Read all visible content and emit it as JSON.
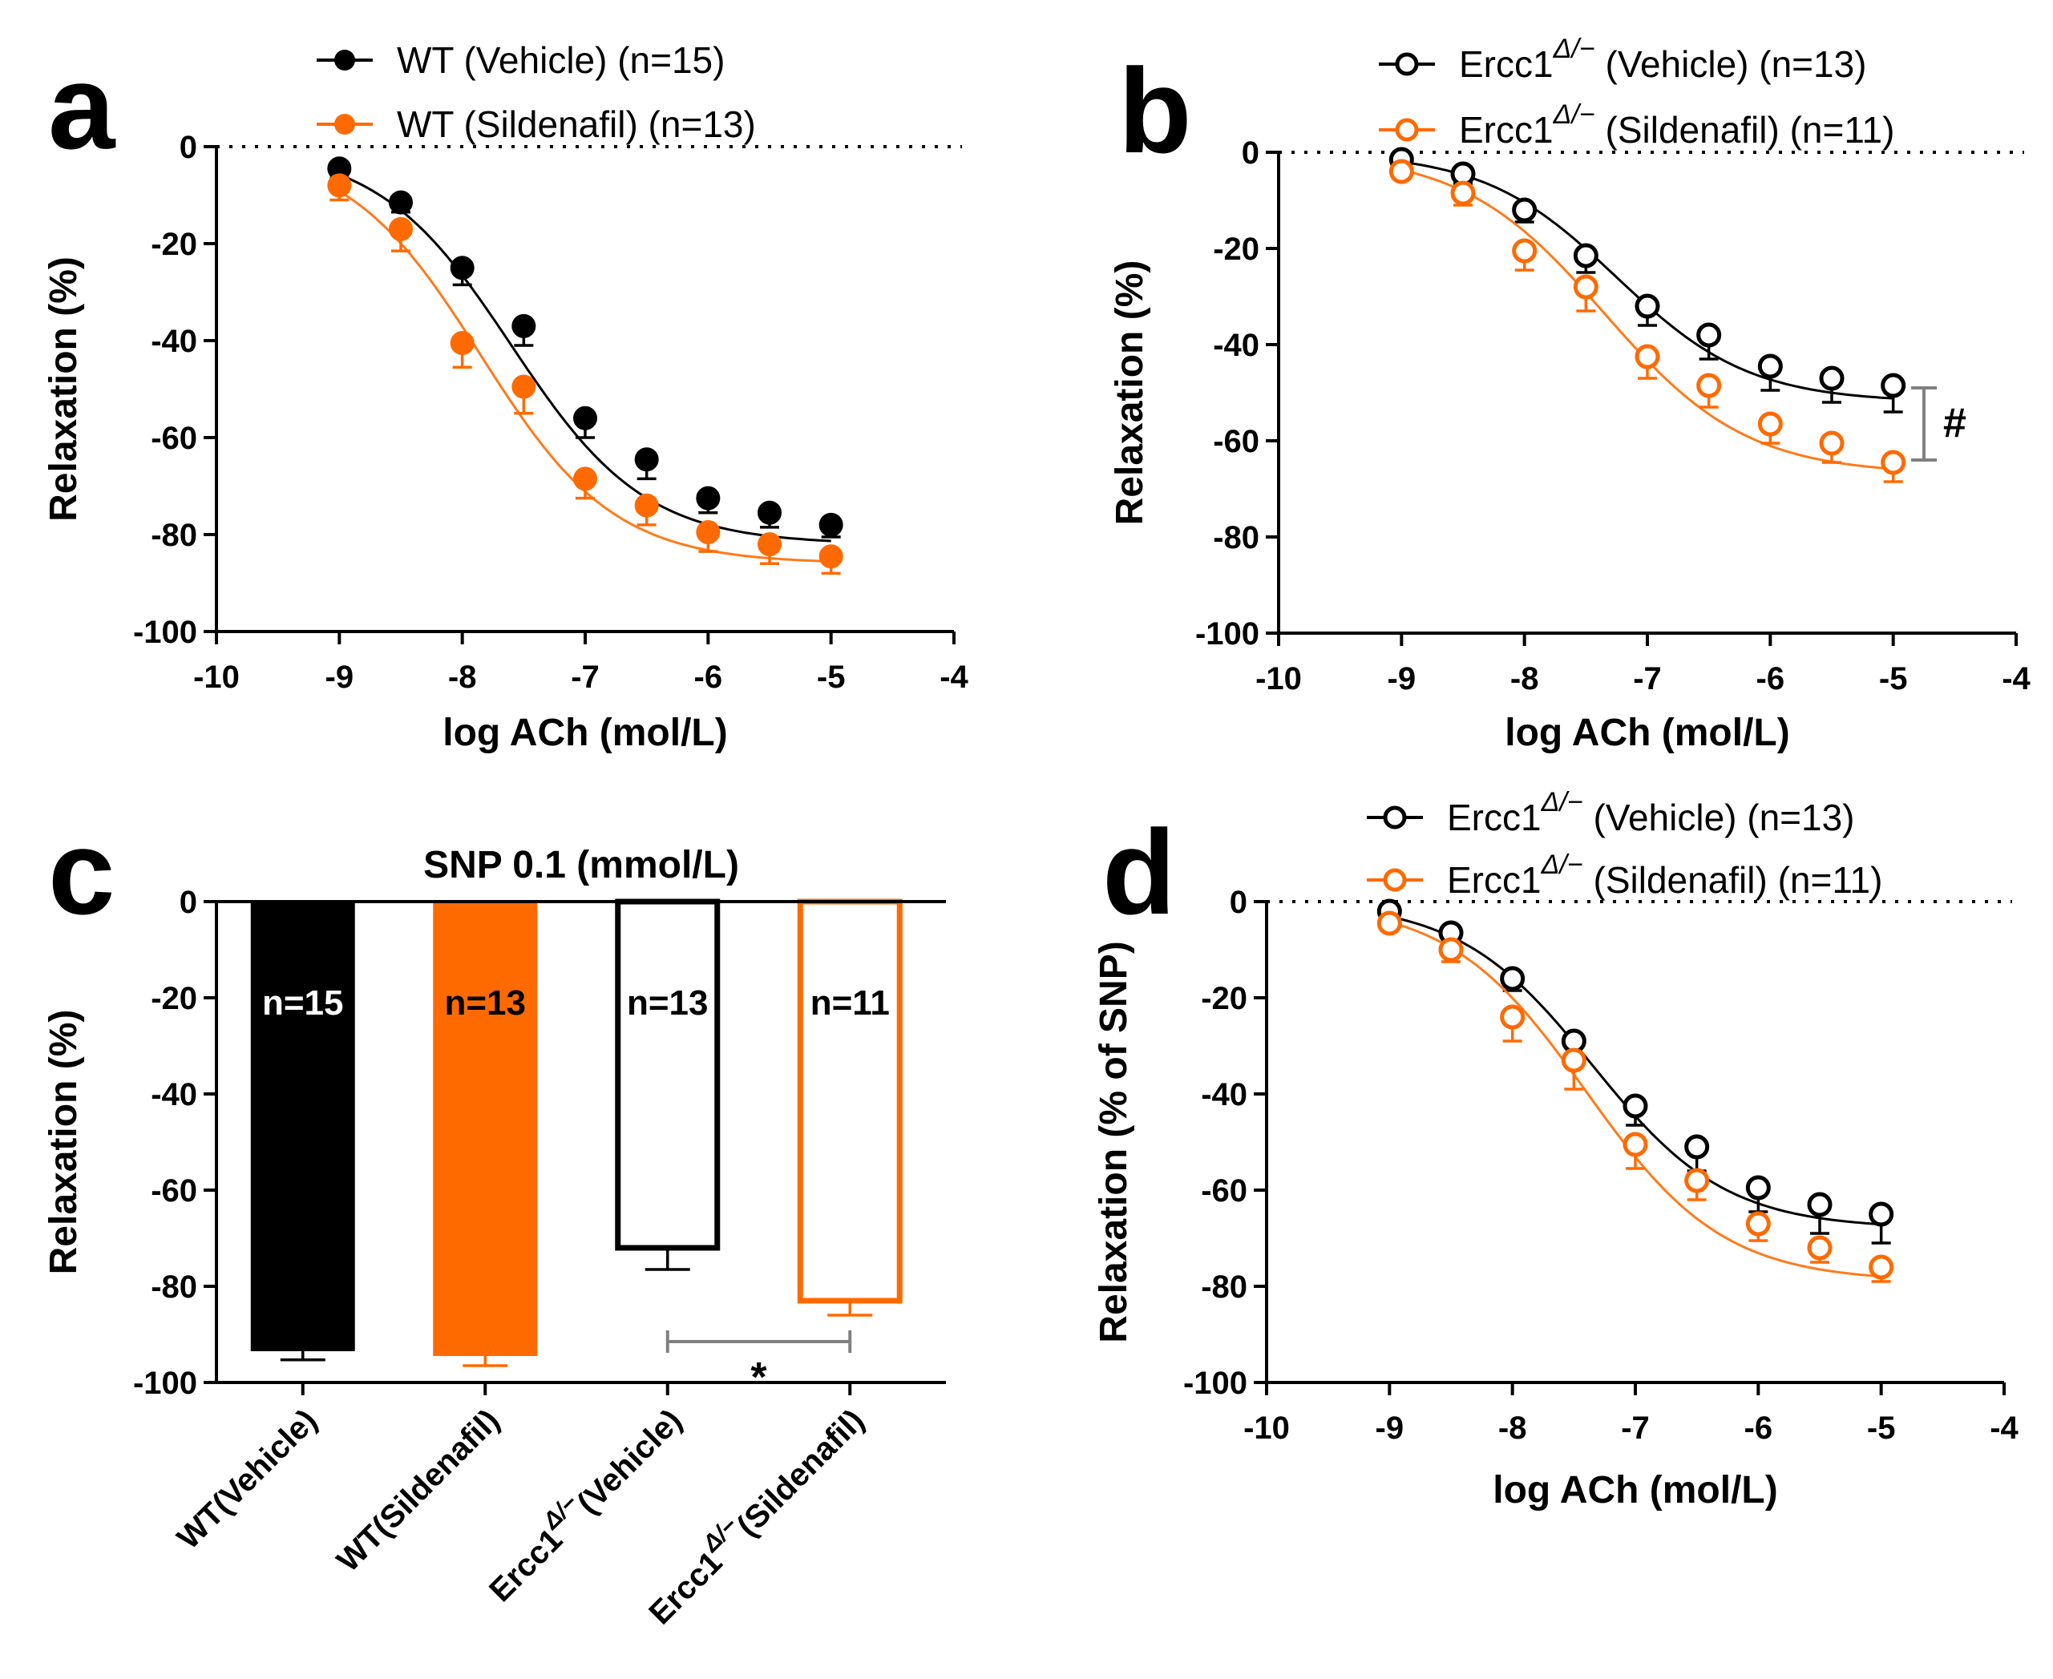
{
  "colors": {
    "black": "#000000",
    "orange": "#ff6a00",
    "orange_line": "#ff7a1a",
    "gray": "#808080"
  },
  "chart_data": [
    {
      "panel": "a",
      "type": "line",
      "title": "",
      "xlabel": "log ACh (mol/L)",
      "ylabel": "Relaxation (%)",
      "xlim": [
        -10,
        -4
      ],
      "ylim": [
        -100,
        0
      ],
      "xticks": [
        "-10",
        "-9",
        "-8",
        "-7",
        "-6",
        "-5",
        "-4"
      ],
      "yticks": [
        "0",
        "-20",
        "-40",
        "-60",
        "-80",
        "-100"
      ],
      "x": [
        -9,
        -8.5,
        -8,
        -7.5,
        -7,
        -6.5,
        -6,
        -5.5,
        -5
      ],
      "series": [
        {
          "legend": "WT (Vehicle) (n=15)",
          "color": "#000000",
          "marker": "filled",
          "values": [
            -4.5,
            -11.5,
            -25,
            -37,
            -56,
            -64.5,
            -72.5,
            -75.5,
            -78
          ],
          "errors": [
            2,
            2,
            3.5,
            4,
            4,
            4,
            3,
            3,
            2.5
          ],
          "fit": {
            "bottom": -82,
            "logEC50": -7.6,
            "hill": 0.8
          }
        },
        {
          "legend": "WT (Sildenafil) (n=13)",
          "color": "#ff6a00",
          "marker": "filled",
          "values": [
            -8,
            -17,
            -40.5,
            -49.5,
            -68.5,
            -74,
            -79.5,
            -82,
            -84.5
          ],
          "errors": [
            3,
            4.5,
            5,
            5.5,
            4,
            4,
            4,
            4,
            3.5
          ],
          "fit": {
            "bottom": -86,
            "logEC50": -7.85,
            "hill": 0.8
          }
        }
      ],
      "annotations": []
    },
    {
      "panel": "b",
      "type": "line",
      "title": "",
      "xlabel": "log ACh (mol/L)",
      "ylabel": "Relaxation (%)",
      "xlim": [
        -10,
        -4
      ],
      "ylim": [
        -100,
        0
      ],
      "xticks": [
        "-10",
        "-9",
        "-8",
        "-7",
        "-6",
        "-5",
        "-4"
      ],
      "yticks": [
        "0",
        "-20",
        "-40",
        "-60",
        "-80",
        "-100"
      ],
      "x": [
        -9,
        -8.5,
        -8,
        -7.5,
        -7,
        -6.5,
        -6,
        -5.5,
        -5
      ],
      "series": [
        {
          "legend_main": "Ercc1",
          "legend_sup": "Δ/−",
          "legend_tail": " (Vehicle) (n=13)",
          "color": "#000000",
          "marker": "open",
          "values": [
            -1.5,
            -4.5,
            -12,
            -21.5,
            -32,
            -38,
            -44.5,
            -47,
            -48.5
          ],
          "errors": [
            1.5,
            2,
            2.5,
            3.5,
            4,
            5,
            5,
            5,
            5.5
          ],
          "fit": {
            "bottom": -52,
            "logEC50": -7.25,
            "hill": 0.8
          }
        },
        {
          "legend_main": "Ercc1",
          "legend_sup": "Δ/−",
          "legend_tail": " (Sildenafil) (n=11)",
          "color": "#ff6a00",
          "marker": "open",
          "values": [
            -4,
            -8.5,
            -20.5,
            -28,
            -42.5,
            -48.5,
            -56.5,
            -60.5,
            -64.5
          ],
          "errors": [
            1.5,
            2.5,
            4,
            5,
            4.5,
            4.5,
            4,
            4,
            4
          ],
          "fit": {
            "bottom": -67,
            "logEC50": -7.35,
            "hill": 0.75
          }
        }
      ],
      "annotations": [
        {
          "text": "#",
          "type": "bracket",
          "from": -49,
          "to": -64,
          "x": -4.75
        }
      ]
    },
    {
      "panel": "c",
      "type": "bar",
      "title": "SNP 0.1 (mmol/L)",
      "xlabel": "",
      "ylabel": "Relaxation (%)",
      "ylim": [
        -100,
        0
      ],
      "yticks": [
        "0",
        "-20",
        "-40",
        "-60",
        "-80",
        "-100"
      ],
      "categories": [
        {
          "main": "WT(Vehicle)",
          "sup": "",
          "tail": ""
        },
        {
          "main": "WT(Sildenafil)",
          "sup": "",
          "tail": ""
        },
        {
          "main": "Ercc1",
          "sup": "Δ/−",
          "tail": "(Vehicle)"
        },
        {
          "main": "Ercc1",
          "sup": "Δ/−",
          "tail": "(Sildenafil)"
        }
      ],
      "values": [
        -93.5,
        -94.5,
        -72.5,
        -83.5
      ],
      "errors": [
        1.8,
        2,
        4,
        2.5
      ],
      "bar_labels": [
        "n=15",
        "n=13",
        "n=13",
        "n=11"
      ],
      "bar_colors": [
        "#000000",
        "#ff6a00",
        "#000000",
        "#ff6a00"
      ],
      "bar_fill": [
        "solid",
        "solid",
        "open",
        "open"
      ],
      "label_colors": [
        "#ffffff",
        "#000000",
        "#000000",
        "#000000"
      ],
      "annotations": [
        {
          "text": "*",
          "type": "bracket",
          "from_bar": 2,
          "to_bar": 3,
          "y": -91.5
        }
      ]
    },
    {
      "panel": "d",
      "type": "line",
      "title": "",
      "xlabel": "log ACh (mol/L)",
      "ylabel": "Relaxation (% of SNP)",
      "xlim": [
        -10,
        -4
      ],
      "ylim": [
        -100,
        0
      ],
      "xticks": [
        "-10",
        "-9",
        "-8",
        "-7",
        "-6",
        "-5",
        "-4"
      ],
      "yticks": [
        "0",
        "-20",
        "-40",
        "-60",
        "-80",
        "-100"
      ],
      "x": [
        -9,
        -8.5,
        -8,
        -7.5,
        -7,
        -6.5,
        -6,
        -5.5,
        -5
      ],
      "series": [
        {
          "legend_main": "Ercc1",
          "legend_sup": "Δ/−",
          "legend_tail": " (Vehicle) (n=13)",
          "color": "#000000",
          "marker": "open",
          "values": [
            -2,
            -6.5,
            -16,
            -29,
            -42.5,
            -51,
            -59.5,
            -63,
            -65
          ],
          "errors": [
            1.5,
            2,
            2.5,
            4,
            4,
            5,
            5,
            6,
            6
          ],
          "fit": {
            "bottom": -68,
            "logEC50": -7.35,
            "hill": 0.8
          }
        },
        {
          "legend_main": "Ercc1",
          "legend_sup": "Δ/−",
          "legend_tail": " (Sildenafil) (n=11)",
          "color": "#ff6a00",
          "marker": "open",
          "values": [
            -4.5,
            -10,
            -24,
            -33,
            -50.5,
            -58,
            -67,
            -72,
            -76
          ],
          "errors": [
            1.5,
            2.5,
            5,
            6,
            5,
            4,
            3.5,
            3,
            3
          ],
          "fit": {
            "bottom": -79,
            "logEC50": -7.4,
            "hill": 0.78
          }
        }
      ],
      "annotations": []
    }
  ]
}
